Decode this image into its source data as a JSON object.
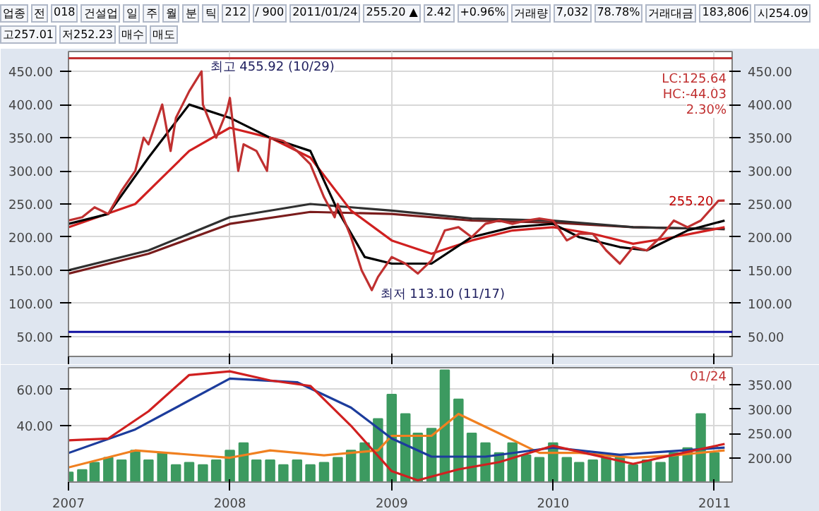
{
  "chart_data": [
    {
      "type": "other",
      "annotations": [
        "업종",
        "전",
        "018",
        "건설업",
        "일",
        "주",
        "월",
        "분",
        "틱",
        "212",
        "/ 900",
        "2011/01/24",
        "255.20 ▲",
        "2.42",
        "+0.96%",
        "거래량",
        "7,032",
        "78.78%",
        "거래대금",
        "183,806",
        "시254.09",
        "고257.01",
        "저252.23",
        "매수",
        "매도"
      ]
    },
    {
      "type": "line",
      "xlim": [
        "2007-01",
        "2011-02-10"
      ],
      "ylim": [
        20,
        480
      ],
      "yticks": [
        {
          "value": 50,
          "label": "50.00"
        },
        {
          "value": 100,
          "label": "100.00"
        },
        {
          "value": 150,
          "label": "150.00"
        },
        {
          "value": 200,
          "label": "200.00"
        },
        {
          "value": 250,
          "label": "250.00"
        },
        {
          "value": 300,
          "label": "300.00"
        },
        {
          "value": 350,
          "label": "350.00"
        },
        {
          "value": 400,
          "label": "400.00"
        },
        {
          "value": 450,
          "label": "450.00"
        }
      ],
      "y2lim": [
        20,
        480
      ],
      "y2ticks": [
        {
          "value": 50,
          "label": "50.00"
        },
        {
          "value": 100,
          "label": "100.00"
        },
        {
          "value": 150,
          "label": "150.00"
        },
        {
          "value": 200,
          "label": "200.00"
        },
        {
          "value": 250,
          "label": "250.00"
        },
        {
          "value": 300,
          "label": "300.00"
        },
        {
          "value": 350,
          "label": "350.00"
        },
        {
          "value": 400,
          "label": "400.00"
        },
        {
          "value": 450,
          "label": "450.00"
        }
      ],
      "xticks": [
        {
          "value": "2007-01",
          "label": null
        },
        {
          "value": "2008-01",
          "label": null
        },
        {
          "value": "2009-01",
          "label": null
        },
        {
          "value": "2010-01",
          "label": null
        },
        {
          "value": "2011-01",
          "label": null
        }
      ],
      "tick_labels": "y",
      "grid": true,
      "series": [
        {
          "color": "#7a1c1c",
          "x": [
            "2007-01",
            "2007-07",
            "2008-01",
            "2008-07",
            "2009-01",
            "2009-07",
            "2010-01",
            "2010-07",
            "2011-01-24"
          ],
          "values": [
            145,
            175,
            220,
            238,
            235,
            225,
            222,
            215,
            212
          ]
        },
        {
          "color": "#303030",
          "x": [
            "2007-01",
            "2007-07",
            "2008-01",
            "2008-07",
            "2009-01",
            "2009-07",
            "2010-01",
            "2010-07",
            "2011-01-24"
          ],
          "values": [
            150,
            180,
            230,
            250,
            240,
            228,
            225,
            215,
            212
          ]
        },
        {
          "color": "#d02020",
          "x": [
            "2007-01",
            "2007-06",
            "2007-10",
            "2008-01",
            "2008-04",
            "2008-07",
            "2008-10",
            "2009-01",
            "2009-04",
            "2009-07",
            "2009-10",
            "2010-01",
            "2010-04",
            "2010-07",
            "2010-10",
            "2011-01-24"
          ],
          "values": [
            215,
            250,
            330,
            365,
            350,
            320,
            240,
            195,
            175,
            195,
            210,
            215,
            205,
            190,
            200,
            215
          ]
        },
        {
          "color": "#000000",
          "x": [
            "2007-01",
            "2007-04",
            "2007-07",
            "2007-10",
            "2008-01",
            "2008-04",
            "2008-07",
            "2008-09",
            "2008-11",
            "2009-01",
            "2009-04",
            "2009-07",
            "2009-10",
            "2010-01",
            "2010-03",
            "2010-06",
            "2010-08",
            "2010-11",
            "2011-01-24"
          ],
          "values": [
            220,
            235,
            320,
            400,
            380,
            350,
            330,
            240,
            170,
            160,
            160,
            200,
            215,
            220,
            200,
            185,
            180,
            210,
            225
          ]
        },
        {
          "color": "#c03030",
          "x": [
            "2007-01",
            "2007-02",
            "2007-03",
            "2007-04",
            "2007-05",
            "2007-06",
            "2007-06-20",
            "2007-07",
            "2007-08",
            "2007-08-20",
            "2007-09",
            "2007-10",
            "2007-10-29",
            "2007-11",
            "2007-12",
            "2007-12-25",
            "2008-01",
            "2008-01-20",
            "2008-02",
            "2008-03",
            "2008-03-25",
            "2008-04",
            "2008-05",
            "2008-06",
            "2008-07",
            "2008-08",
            "2008-08-25",
            "2008-09",
            "2008-10",
            "2008-10-25",
            "2008-11-17",
            "2008-12",
            "2009-01",
            "2009-02",
            "2009-03",
            "2009-04",
            "2009-05",
            "2009-06",
            "2009-07",
            "2009-08",
            "2009-09",
            "2009-10",
            "2009-11",
            "2009-12",
            "2010-01",
            "2010-02",
            "2010-03",
            "2010-04",
            "2010-05",
            "2010-06",
            "2010-07",
            "2010-08",
            "2010-09",
            "2010-10",
            "2010-11",
            "2010-12",
            "2011-01-10",
            "2011-01-24"
          ],
          "values": [
            225,
            230,
            245,
            235,
            270,
            300,
            350,
            340,
            400,
            330,
            380,
            420,
            450,
            400,
            350,
            390,
            410,
            300,
            340,
            330,
            300,
            350,
            345,
            330,
            310,
            260,
            230,
            250,
            200,
            150,
            120,
            140,
            170,
            160,
            145,
            165,
            210,
            215,
            200,
            220,
            225,
            220,
            225,
            228,
            225,
            195,
            205,
            205,
            180,
            160,
            185,
            180,
            200,
            225,
            215,
            225,
            255,
            255.2
          ]
        }
      ],
      "ref_lines": [
        {
          "axis": "y",
          "value": 470,
          "color": "#c03030"
        },
        {
          "axis": "y",
          "value": 57,
          "color": "#1010a0"
        }
      ],
      "annotations": [
        {
          "text": "최고 455.92 (10/29)",
          "x": "2007-10-29",
          "y": 455.92
        },
        {
          "text": "최저 113.10 (11/17)",
          "x": "2008-11-17",
          "y": 113.1
        },
        {
          "text": "255.20",
          "x": "2011-01-24",
          "y": 255.2
        },
        "LC:125.64",
        "HC:-44.03",
        "2.30%"
      ]
    },
    {
      "type": "bar",
      "xlim": [
        "2007-01",
        "2011-02-10"
      ],
      "ylim": [
        9,
        72
      ],
      "yticks": [
        {
          "value": 40,
          "label": "40.00"
        },
        {
          "value": 60,
          "label": "60.00"
        }
      ],
      "y2lim": [
        150,
        385
      ],
      "y2ticks": [
        {
          "value": 200,
          "label": "200.00"
        },
        {
          "value": 250,
          "label": "250.00"
        },
        {
          "value": 300,
          "label": "300.00"
        },
        {
          "value": 350,
          "label": "350.00"
        }
      ],
      "xticks": [
        {
          "value": "2007-01",
          "label": "2007"
        },
        {
          "value": "2008-01",
          "label": "2008"
        },
        {
          "value": "2009-01",
          "label": "2009"
        },
        {
          "value": "2010-01",
          "label": "2010"
        },
        {
          "value": "2011-01",
          "label": "2011"
        }
      ],
      "grid": true,
      "x": [
        "2007-01",
        "2007-02",
        "2007-03",
        "2007-04",
        "2007-05",
        "2007-06",
        "2007-07",
        "2007-08",
        "2007-09",
        "2007-10",
        "2007-11",
        "2007-12",
        "2008-01",
        "2008-02",
        "2008-03",
        "2008-04",
        "2008-05",
        "2008-06",
        "2008-07",
        "2008-08",
        "2008-09",
        "2008-10",
        "2008-11",
        "2008-12",
        "2009-01",
        "2009-02",
        "2009-03",
        "2009-04",
        "2009-05",
        "2009-06",
        "2009-07",
        "2009-08",
        "2009-09",
        "2009-10",
        "2009-11",
        "2009-12",
        "2010-01",
        "2010-02",
        "2010-03",
        "2010-04",
        "2010-05",
        "2010-06",
        "2010-07",
        "2010-08",
        "2010-09",
        "2010-10",
        "2010-11",
        "2010-12",
        "2011-01"
      ],
      "series": [
        {
          "type": "bar",
          "axis": "y2",
          "color": "#3c9a60",
          "values": [
            170,
            175,
            190,
            200,
            195,
            215,
            195,
            210,
            185,
            190,
            185,
            195,
            215,
            230,
            195,
            195,
            185,
            195,
            185,
            190,
            200,
            215,
            230,
            280,
            330,
            290,
            250,
            260,
            380,
            320,
            250,
            230,
            210,
            230,
            205,
            200,
            230,
            200,
            190,
            195,
            200,
            200,
            185,
            195,
            190,
            210,
            220,
            290,
            210
          ]
        },
        {
          "type": "line",
          "axis": "y2",
          "color": "#f08020",
          "x": [
            "2007-01",
            "2007-06",
            "2008-01",
            "2008-04",
            "2008-08",
            "2008-12",
            "2009-01",
            "2009-04",
            "2009-06",
            "2009-09",
            "2009-12",
            "2010-03",
            "2010-07",
            "2010-10",
            "2011-01-24"
          ],
          "values": [
            180,
            215,
            200,
            215,
            205,
            215,
            245,
            245,
            290,
            250,
            210,
            210,
            200,
            205,
            215
          ]
        },
        {
          "type": "line",
          "axis": "y",
          "color": "#1c3c9c",
          "x": [
            "2007-01",
            "2007-06",
            "2008-01",
            "2008-06",
            "2008-10",
            "2009-01",
            "2009-04",
            "2009-08",
            "2010-01",
            "2010-06",
            "2011-01-24"
          ],
          "values": [
            25,
            38,
            66,
            64,
            50,
            33,
            23,
            23,
            28,
            24,
            28
          ]
        },
        {
          "type": "line",
          "axis": "y",
          "color": "#d02020",
          "x": [
            "2007-01",
            "2007-04",
            "2007-07",
            "2007-10",
            "2008-01",
            "2008-04",
            "2008-07",
            "2008-10",
            "2009-01",
            "2009-03",
            "2009-06",
            "2009-09",
            "2010-01",
            "2010-04",
            "2010-07",
            "2010-10",
            "2011-01-24"
          ],
          "values": [
            32,
            33,
            48,
            68,
            70,
            65,
            62,
            40,
            15,
            10,
            16,
            20,
            29,
            24,
            19,
            24,
            30
          ]
        }
      ],
      "annotations": [
        "01/24"
      ]
    }
  ]
}
